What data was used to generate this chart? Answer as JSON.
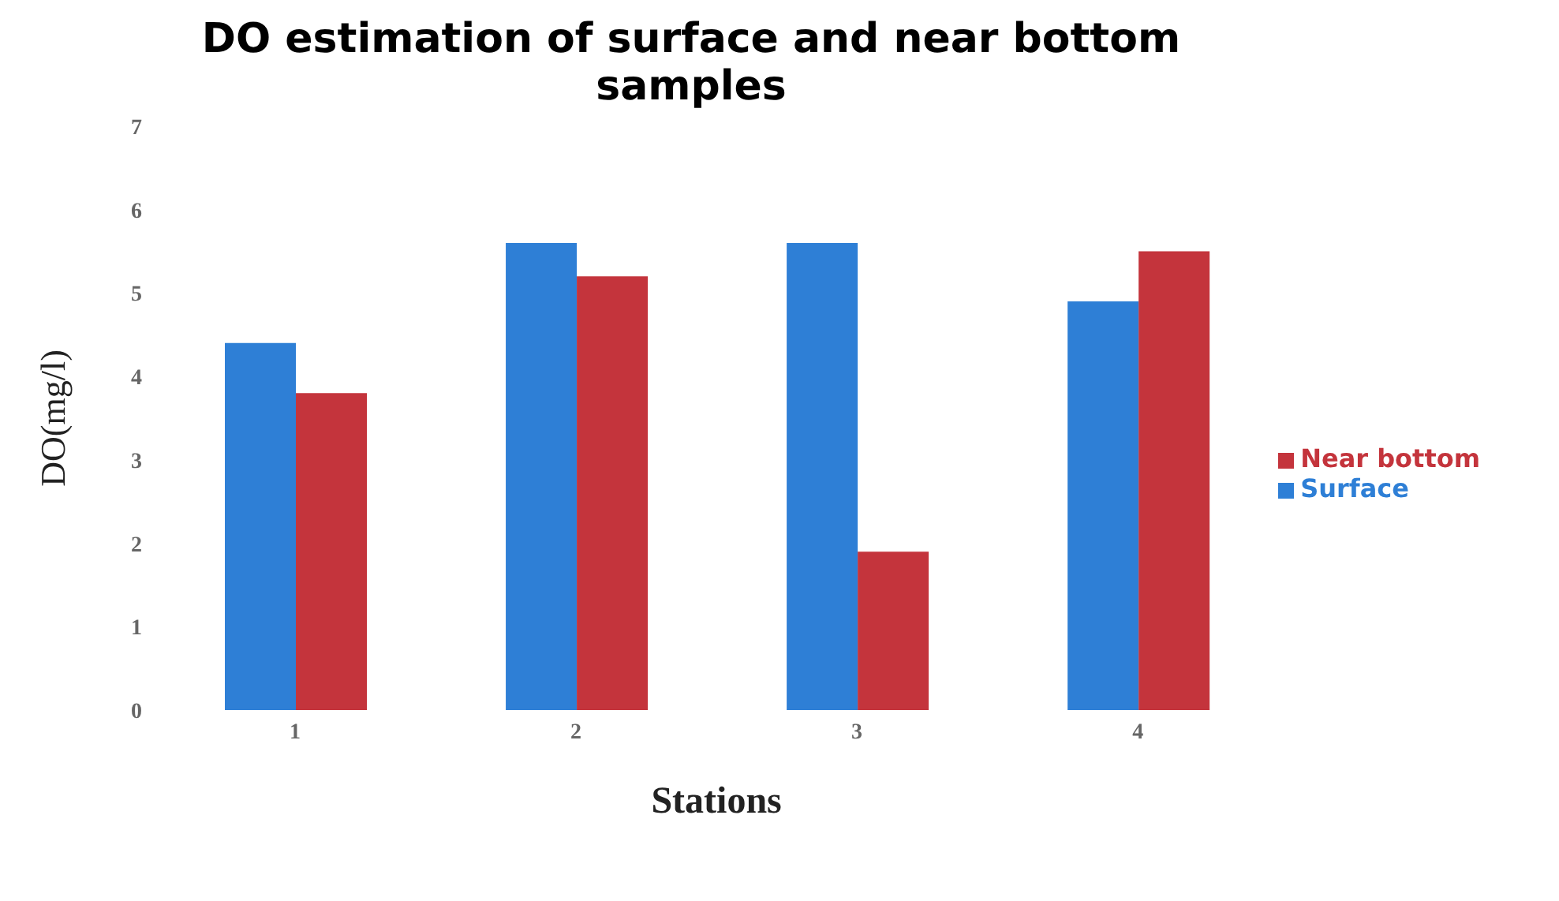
{
  "chart_data": {
    "type": "bar",
    "title": "DO estimation of surface and near bottom samples",
    "xlabel": "Stations",
    "ylabel": "DO(mg/l)",
    "categories": [
      "1",
      "2",
      "3",
      "4"
    ],
    "series": [
      {
        "name": "Surface",
        "color": "#2e7fd6",
        "values": [
          4.4,
          5.6,
          5.6,
          4.9
        ]
      },
      {
        "name": "Near bottom",
        "color": "#c4343c",
        "values": [
          3.8,
          5.2,
          1.9,
          5.5
        ]
      }
    ],
    "ylim": [
      0,
      7
    ],
    "yticks": [
      0,
      1,
      2,
      3,
      4,
      5,
      6,
      7
    ],
    "grid": false,
    "legend": "right"
  }
}
